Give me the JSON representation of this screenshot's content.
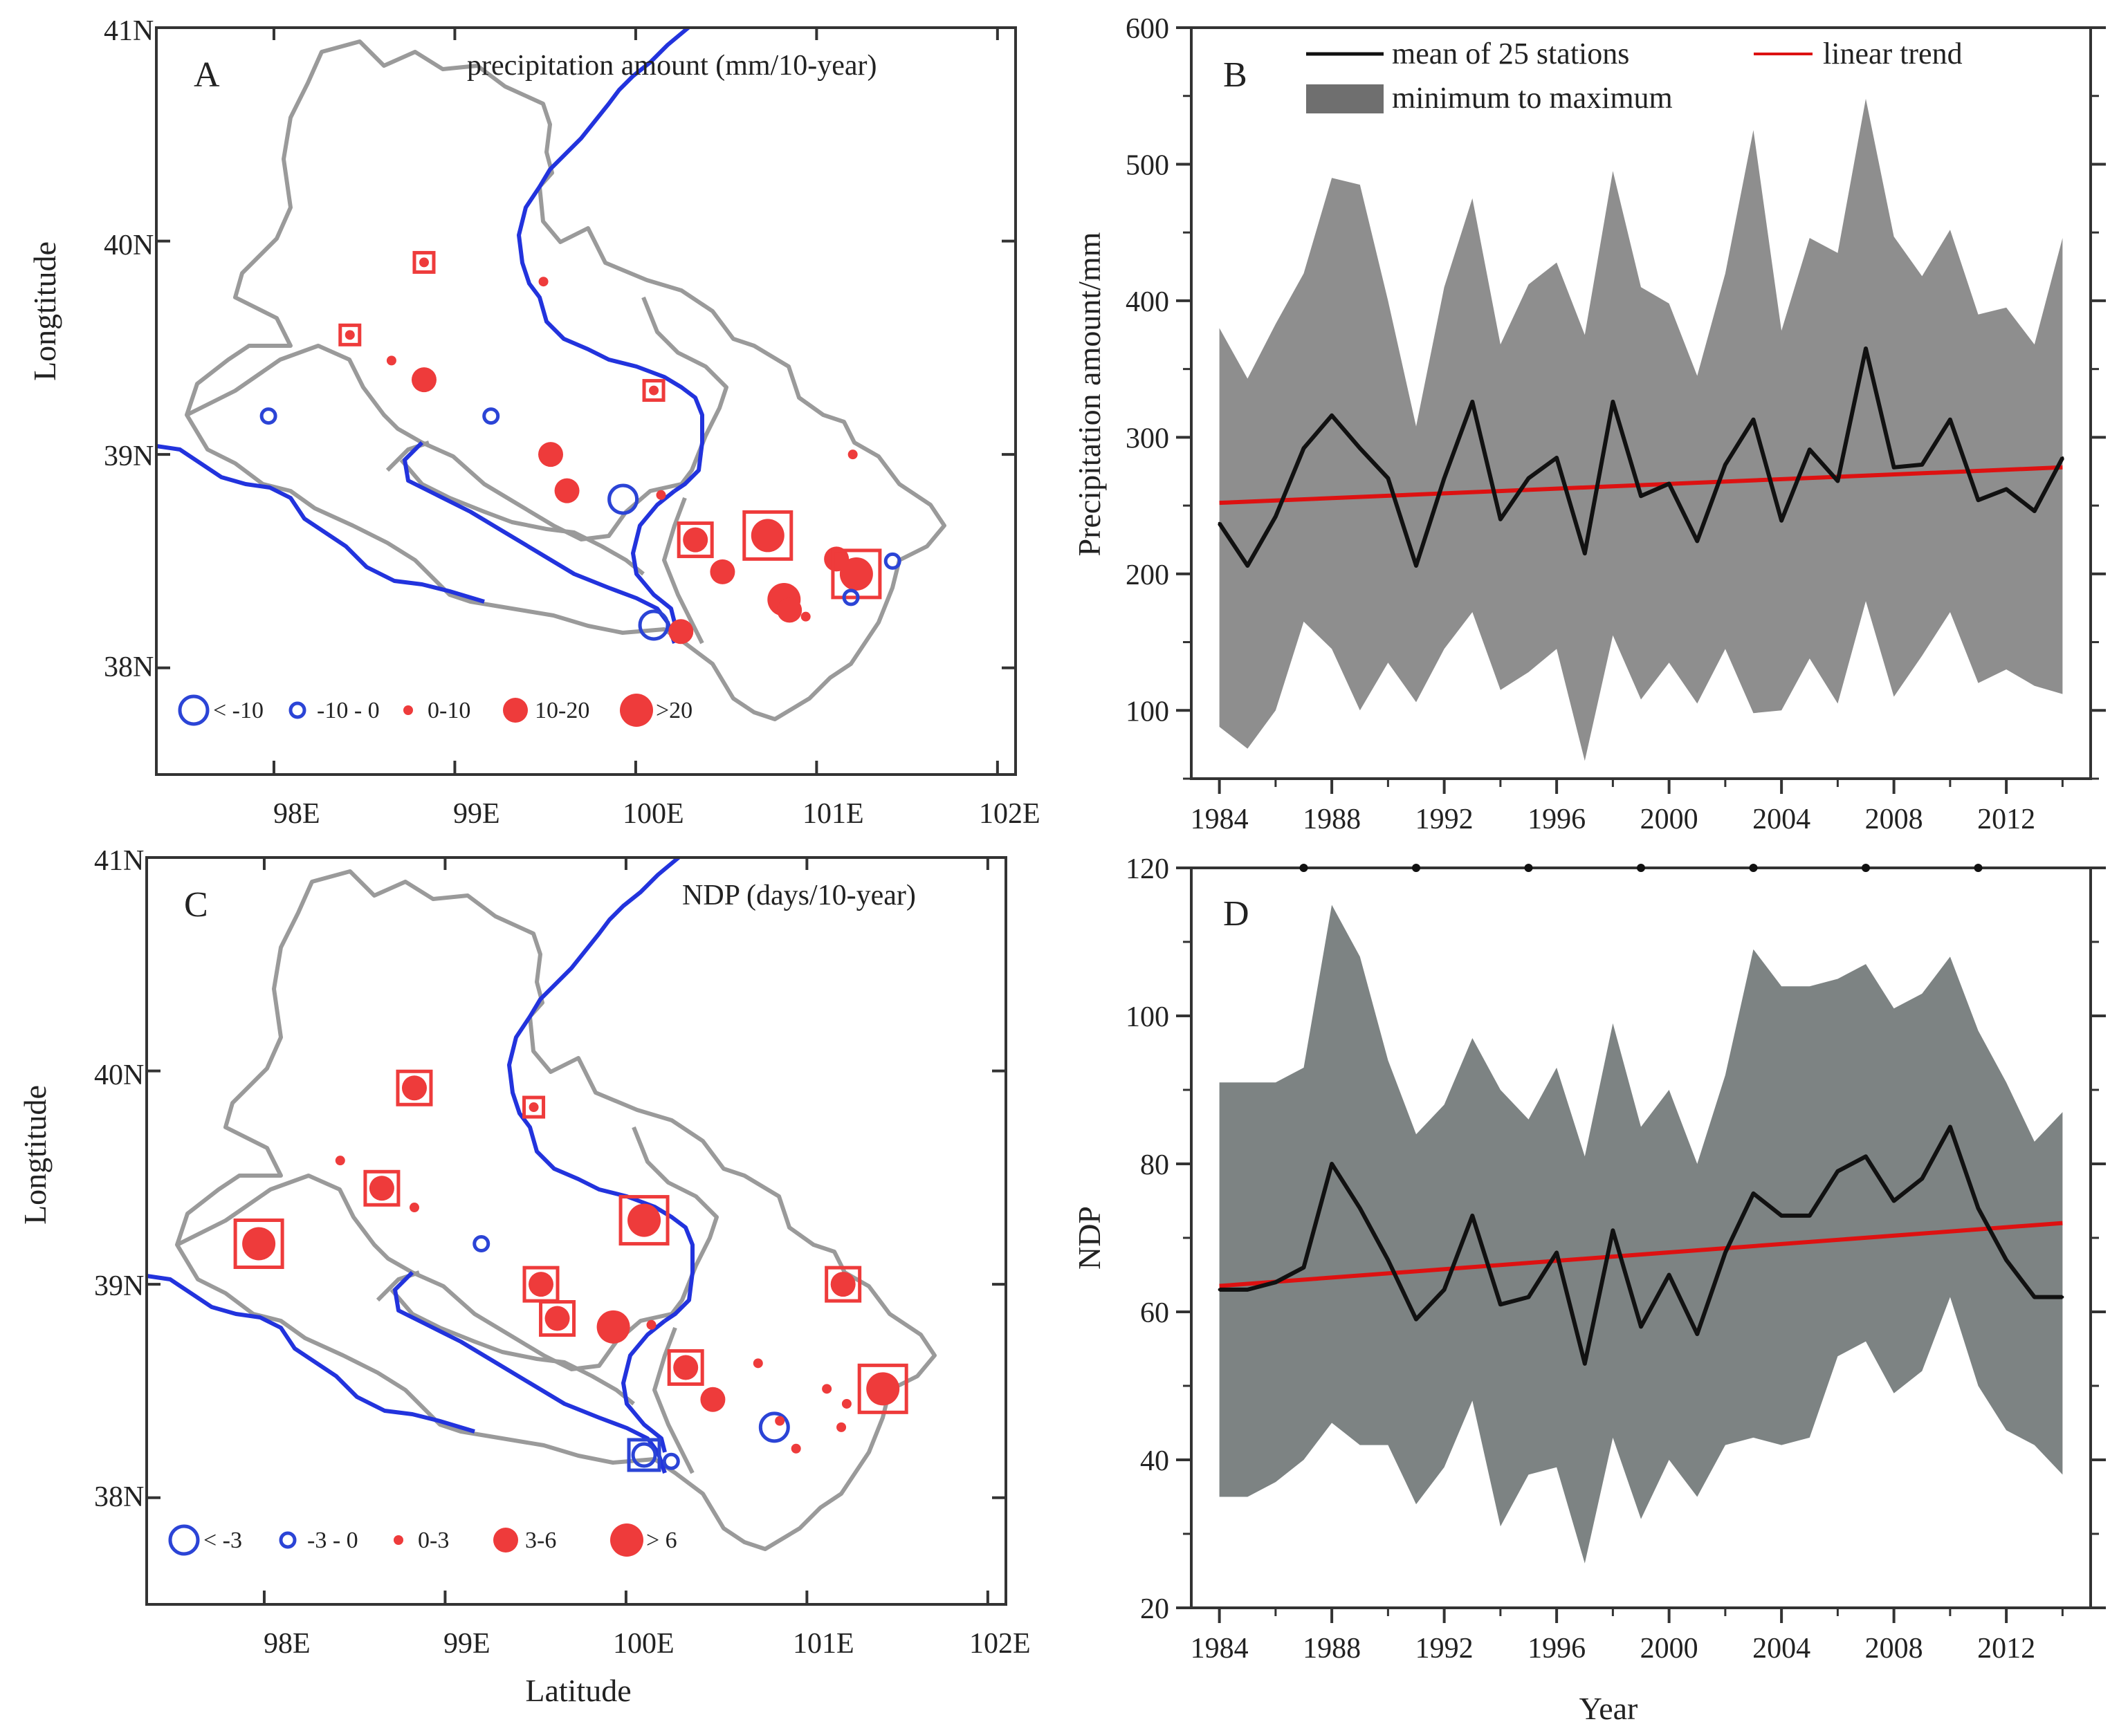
{
  "chart_data": [
    {
      "panel": "A",
      "type": "map",
      "title": "precipitation amount (mm/10-year)",
      "xlabel": "",
      "ylabel": "Longtitude",
      "x_ticks": [
        "98E",
        "99E",
        "100E",
        "101E",
        "102E"
      ],
      "y_ticks": [
        "41N",
        "40N",
        "39N",
        "38N"
      ],
      "legend": [
        {
          "label": "< -10",
          "kind": "neg",
          "size": 3
        },
        {
          "label": "-10 - 0",
          "kind": "neg",
          "size": 1
        },
        {
          "label": "0-10",
          "kind": "pos",
          "size": 1
        },
        {
          "label": "10-20",
          "kind": "pos",
          "size": 2
        },
        {
          "label": ">20",
          "kind": "pos",
          "size": 3
        }
      ],
      "stations": [
        {
          "lon": 98.83,
          "lat": 39.9,
          "kind": "pos",
          "size": 1,
          "sig": true
        },
        {
          "lon": 98.42,
          "lat": 39.56,
          "kind": "pos",
          "size": 1,
          "sig": true
        },
        {
          "lon": 98.65,
          "lat": 39.44,
          "kind": "pos",
          "size": 1,
          "sig": false
        },
        {
          "lon": 98.83,
          "lat": 39.35,
          "kind": "pos",
          "size": 2,
          "sig": false
        },
        {
          "lon": 99.49,
          "lat": 39.81,
          "kind": "pos",
          "size": 1,
          "sig": false
        },
        {
          "lon": 97.97,
          "lat": 39.18,
          "kind": "neg",
          "size": 1,
          "sig": false
        },
        {
          "lon": 99.2,
          "lat": 39.18,
          "kind": "neg",
          "size": 1,
          "sig": false
        },
        {
          "lon": 99.53,
          "lat": 39.0,
          "kind": "pos",
          "size": 2,
          "sig": false
        },
        {
          "lon": 99.62,
          "lat": 38.83,
          "kind": "pos",
          "size": 2,
          "sig": false
        },
        {
          "lon": 99.93,
          "lat": 38.79,
          "kind": "neg",
          "size": 3,
          "sig": false
        },
        {
          "lon": 100.1,
          "lat": 39.3,
          "kind": "pos",
          "size": 1,
          "sig": true
        },
        {
          "lon": 100.14,
          "lat": 38.81,
          "kind": "pos",
          "size": 1,
          "sig": false
        },
        {
          "lon": 100.33,
          "lat": 38.6,
          "kind": "pos",
          "size": 2,
          "sig": true
        },
        {
          "lon": 100.48,
          "lat": 38.45,
          "kind": "pos",
          "size": 2,
          "sig": false
        },
        {
          "lon": 100.73,
          "lat": 38.62,
          "kind": "pos",
          "size": 3,
          "sig": true
        },
        {
          "lon": 100.82,
          "lat": 38.32,
          "kind": "pos",
          "size": 3,
          "sig": false
        },
        {
          "lon": 100.85,
          "lat": 38.27,
          "kind": "pos",
          "size": 2,
          "sig": false
        },
        {
          "lon": 100.94,
          "lat": 38.24,
          "kind": "pos",
          "size": 1,
          "sig": false
        },
        {
          "lon": 100.1,
          "lat": 38.2,
          "kind": "neg",
          "size": 3,
          "sig": false
        },
        {
          "lon": 100.25,
          "lat": 38.17,
          "kind": "pos",
          "size": 2,
          "sig": false
        },
        {
          "lon": 101.11,
          "lat": 38.51,
          "kind": "pos",
          "size": 2,
          "sig": false
        },
        {
          "lon": 101.22,
          "lat": 38.44,
          "kind": "pos",
          "size": 3,
          "sig": true
        },
        {
          "lon": 101.19,
          "lat": 38.33,
          "kind": "neg",
          "size": 1,
          "sig": false
        },
        {
          "lon": 101.42,
          "lat": 38.5,
          "kind": "neg",
          "size": 1,
          "sig": false
        },
        {
          "lon": 101.2,
          "lat": 39.0,
          "kind": "pos",
          "size": 1,
          "sig": false
        }
      ]
    },
    {
      "panel": "B",
      "type": "area",
      "title": "",
      "xlabel": "",
      "ylabel": "Precipitation amount/mm",
      "xlim": [
        1983,
        2015
      ],
      "ylim": [
        50,
        600
      ],
      "y_ticks": [
        100,
        200,
        300,
        400,
        500,
        600
      ],
      "x_ticks": [
        1984,
        1988,
        1992,
        1996,
        2000,
        2004,
        2008,
        2012
      ],
      "x": [
        1984,
        1985,
        1986,
        1987,
        1988,
        1989,
        1990,
        1991,
        1992,
        1993,
        1994,
        1995,
        1996,
        1997,
        1998,
        1999,
        2000,
        2001,
        2002,
        2003,
        2004,
        2005,
        2006,
        2007,
        2008,
        2009,
        2010,
        2011,
        2012,
        2013,
        2014
      ],
      "series": [
        {
          "name": "minimum to maximum",
          "kind": "band",
          "upper": [
            380,
            343,
            383,
            420,
            490,
            485,
            400,
            308,
            410,
            475,
            368,
            412,
            428,
            375,
            495,
            410,
            398,
            345,
            420,
            525,
            378,
            446,
            435,
            548,
            447,
            418,
            452,
            390,
            395,
            368,
            446
          ],
          "lower": [
            88,
            72,
            100,
            165,
            145,
            100,
            135,
            106,
            145,
            172,
            115,
            128,
            145,
            63,
            155,
            108,
            135,
            105,
            145,
            98,
            100,
            138,
            105,
            180,
            110,
            140,
            172,
            120,
            130,
            118,
            112
          ]
        },
        {
          "name": "mean of 25 stations",
          "kind": "line",
          "values": [
            237,
            206,
            242,
            292,
            316,
            292,
            270,
            206,
            270,
            326,
            240,
            270,
            285,
            215,
            326,
            257,
            266,
            224,
            280,
            313,
            239,
            291,
            268,
            365,
            278,
            280,
            313,
            254,
            262,
            246,
            285
          ]
        },
        {
          "name": "linear trend",
          "kind": "trend",
          "start": 252,
          "end": 278
        }
      ],
      "legend": [
        "mean of 25 stations",
        "linear trend",
        "minimum to maximum"
      ],
      "legend_position": "top"
    },
    {
      "panel": "C",
      "type": "map",
      "title": "NDP (days/10-year)",
      "xlabel": "Latitude",
      "ylabel": "Longtitude",
      "x_ticks": [
        "98E",
        "99E",
        "100E",
        "101E",
        "102E"
      ],
      "y_ticks": [
        "41N",
        "40N",
        "39N",
        "38N"
      ],
      "legend": [
        {
          "label": "< -3",
          "kind": "neg",
          "size": 3
        },
        {
          "label": "-3 - 0",
          "kind": "neg",
          "size": 1
        },
        {
          "label": "0-3",
          "kind": "pos",
          "size": 1
        },
        {
          "label": "3-6",
          "kind": "pos",
          "size": 2
        },
        {
          "label": "> 6",
          "kind": "pos",
          "size": 3
        }
      ],
      "stations": [
        {
          "lon": 98.83,
          "lat": 39.92,
          "kind": "pos",
          "size": 2,
          "sig": true
        },
        {
          "lon": 99.49,
          "lat": 39.83,
          "kind": "pos",
          "size": 1,
          "sig": true
        },
        {
          "lon": 98.42,
          "lat": 39.58,
          "kind": "pos",
          "size": 1,
          "sig": false
        },
        {
          "lon": 98.65,
          "lat": 39.45,
          "kind": "pos",
          "size": 2,
          "sig": true
        },
        {
          "lon": 98.83,
          "lat": 39.36,
          "kind": "pos",
          "size": 1,
          "sig": false
        },
        {
          "lon": 97.97,
          "lat": 39.19,
          "kind": "pos",
          "size": 3,
          "sig": true
        },
        {
          "lon": 99.2,
          "lat": 39.19,
          "kind": "neg",
          "size": 1,
          "sig": false
        },
        {
          "lon": 100.1,
          "lat": 39.3,
          "kind": "pos",
          "size": 3,
          "sig": true
        },
        {
          "lon": 99.53,
          "lat": 39.0,
          "kind": "pos",
          "size": 2,
          "sig": true
        },
        {
          "lon": 99.62,
          "lat": 38.84,
          "kind": "pos",
          "size": 2,
          "sig": true
        },
        {
          "lon": 99.93,
          "lat": 38.8,
          "kind": "pos",
          "size": 3,
          "sig": false
        },
        {
          "lon": 100.14,
          "lat": 38.81,
          "kind": "pos",
          "size": 1,
          "sig": false
        },
        {
          "lon": 100.33,
          "lat": 38.61,
          "kind": "pos",
          "size": 2,
          "sig": true
        },
        {
          "lon": 100.48,
          "lat": 38.46,
          "kind": "pos",
          "size": 2,
          "sig": false
        },
        {
          "lon": 100.73,
          "lat": 38.63,
          "kind": "pos",
          "size": 1,
          "sig": false
        },
        {
          "lon": 100.82,
          "lat": 38.33,
          "kind": "neg",
          "size": 3,
          "sig": false
        },
        {
          "lon": 100.85,
          "lat": 38.36,
          "kind": "pos",
          "size": 1,
          "sig": false
        },
        {
          "lon": 100.94,
          "lat": 38.23,
          "kind": "pos",
          "size": 1,
          "sig": false
        },
        {
          "lon": 100.1,
          "lat": 38.2,
          "kind": "neg",
          "size": 2,
          "sig": true
        },
        {
          "lon": 100.25,
          "lat": 38.17,
          "kind": "neg",
          "size": 1,
          "sig": false
        },
        {
          "lon": 101.11,
          "lat": 38.51,
          "kind": "pos",
          "size": 1,
          "sig": false
        },
        {
          "lon": 101.22,
          "lat": 38.44,
          "kind": "pos",
          "size": 1,
          "sig": false
        },
        {
          "lon": 101.19,
          "lat": 38.33,
          "kind": "pos",
          "size": 1,
          "sig": false
        },
        {
          "lon": 101.42,
          "lat": 38.51,
          "kind": "pos",
          "size": 3,
          "sig": true
        },
        {
          "lon": 101.2,
          "lat": 39.0,
          "kind": "pos",
          "size": 2,
          "sig": true
        }
      ]
    },
    {
      "panel": "D",
      "type": "area",
      "title": "",
      "xlabel": "Year",
      "ylabel": "NDP",
      "xlim": [
        1983,
        2015
      ],
      "ylim": [
        20,
        120
      ],
      "y_ticks": [
        20,
        40,
        60,
        80,
        100,
        120
      ],
      "x_ticks": [
        1984,
        1988,
        1992,
        1996,
        2000,
        2004,
        2008,
        2012
      ],
      "x": [
        1984,
        1985,
        1986,
        1987,
        1988,
        1989,
        1990,
        1991,
        1992,
        1993,
        1994,
        1995,
        1996,
        1997,
        1998,
        1999,
        2000,
        2001,
        2002,
        2003,
        2004,
        2005,
        2006,
        2007,
        2008,
        2009,
        2010,
        2011,
        2012,
        2013,
        2014
      ],
      "series": [
        {
          "name": "",
          "kind": "band",
          "upper": [
            91,
            91,
            91,
            93,
            115,
            108,
            94,
            84,
            88,
            97,
            90,
            86,
            93,
            81,
            99,
            85,
            90,
            80,
            92,
            109,
            104,
            104,
            105,
            107,
            101,
            103,
            108,
            98,
            91,
            83,
            87
          ],
          "lower": [
            35,
            35,
            37,
            40,
            45,
            42,
            42,
            34,
            39,
            48,
            31,
            38,
            39,
            26,
            43,
            32,
            40,
            35,
            42,
            43,
            42,
            43,
            54,
            56,
            49,
            52,
            62,
            50,
            44,
            42,
            38
          ]
        },
        {
          "name": "",
          "kind": "line",
          "values": [
            63,
            63,
            64,
            66,
            80,
            74,
            67,
            59,
            63,
            73,
            61,
            62,
            68,
            53,
            71,
            58,
            65,
            57,
            68,
            76,
            73,
            73,
            79,
            81,
            75,
            78,
            85,
            74,
            67,
            62,
            62
          ]
        },
        {
          "name": "",
          "kind": "trend",
          "start": 63.5,
          "end": 72
        }
      ]
    }
  ],
  "colors": {
    "band_B": "#8e8e8e",
    "band_D": "#7d8383",
    "mean_line": "#111111",
    "trend_line": "#dd1111",
    "river": "#2233dd",
    "boundary": "#999999",
    "positive": "#ee3b3b",
    "negative": "#2b44d6"
  }
}
